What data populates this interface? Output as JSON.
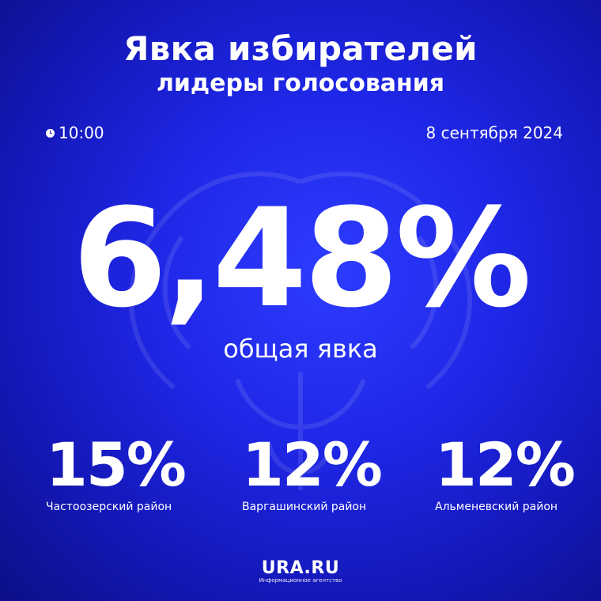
{
  "header": {
    "title": "Явка избирателей",
    "subtitle": "лидеры голосования"
  },
  "meta": {
    "time": "10:00",
    "date": "8 сентября 2024",
    "time_icon": "clock-icon"
  },
  "turnout": {
    "value": "6,48%",
    "label": "общая явка"
  },
  "districts": [
    {
      "value": "15%",
      "name": "Частоозерский район"
    },
    {
      "value": "12%",
      "name": "Варгашинский район"
    },
    {
      "value": "12%",
      "name": "Альменевский район"
    }
  ],
  "logo": {
    "brand": "URA.RU",
    "tagline": "Информационное агентство"
  },
  "colors": {
    "background": "#1f27e6",
    "text": "#ffffff"
  }
}
